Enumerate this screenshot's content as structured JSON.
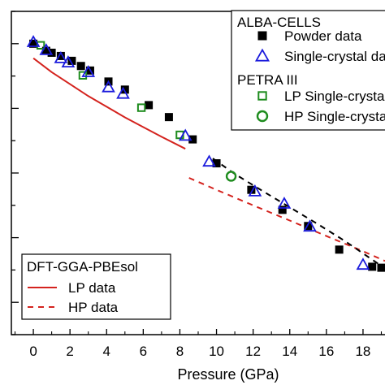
{
  "chart_data": {
    "type": "scatter",
    "title": "",
    "xlabel": "Pressure (GPa)",
    "ylabel": "",
    "xlim": [
      -1.2,
      19.2
    ],
    "ylim": [
      0,
      1
    ],
    "x_ticks": [
      0,
      2,
      4,
      6,
      8,
      10,
      12,
      14,
      16,
      18
    ],
    "grid": false,
    "legend_groups": [
      {
        "header": "ALBA-CELLS",
        "position": "top-right"
      },
      {
        "header": "PETRA III",
        "position": "top-right"
      },
      {
        "header": "DFT-GGA-PBEsol",
        "position": "bottom-left"
      }
    ],
    "series": [
      {
        "name": "Powder data",
        "group": "ALBA-CELLS",
        "marker": "square-filled",
        "color": "#000000",
        "x": [
          0.0,
          0.7,
          1.0,
          1.5,
          2.1,
          2.6,
          3.1,
          4.1,
          5.0,
          6.3,
          7.4,
          8.7,
          10.0,
          11.9,
          13.6,
          15.0,
          16.7,
          18.5,
          19.0
        ],
        "y": [
          0.9,
          0.878,
          0.872,
          0.862,
          0.847,
          0.831,
          0.817,
          0.783,
          0.758,
          0.71,
          0.673,
          0.604,
          0.53,
          0.448,
          0.386,
          0.336,
          0.263,
          0.21,
          0.207
        ]
      },
      {
        "name": "Single-crystal data",
        "group": "ALBA-CELLS",
        "marker": "triangle-open",
        "color": "#1a1adc",
        "x": [
          0.0,
          0.7,
          1.5,
          1.9,
          3.0,
          4.1,
          4.9,
          8.3,
          9.6,
          12.1,
          13.7,
          15.1,
          18.0
        ],
        "y": [
          0.905,
          0.88,
          0.855,
          0.842,
          0.812,
          0.765,
          0.745,
          0.615,
          0.535,
          0.443,
          0.405,
          0.334,
          0.216
        ]
      },
      {
        "name": "LP Single-crystal data",
        "group": "PETRA III",
        "marker": "square-open",
        "color": "#1e8c1e",
        "x": [
          0.4,
          2.7,
          5.9,
          8.0
        ],
        "y": [
          0.895,
          0.802,
          0.702,
          0.618
        ]
      },
      {
        "name": "HP Single-crystal data",
        "group": "PETRA III",
        "marker": "circle-open",
        "color": "#1e8c1e",
        "x": [
          10.8
        ],
        "y": [
          0.49
        ]
      },
      {
        "name": "LP data",
        "group": "DFT-GGA-PBEsol",
        "line": "solid",
        "color": "#d4231e",
        "x": [
          0.0,
          1.0,
          2.0,
          3.0,
          4.0,
          5.0,
          6.0,
          7.0,
          8.3
        ],
        "y": [
          0.855,
          0.812,
          0.775,
          0.738,
          0.705,
          0.672,
          0.642,
          0.612,
          0.575
        ]
      },
      {
        "name": "HP data",
        "group": "DFT-GGA-PBEsol",
        "line": "dashed",
        "color": "#d4231e",
        "x": [
          8.5,
          10.0,
          12.0,
          14.0,
          16.0,
          18.0,
          19.2
        ],
        "y": [
          0.485,
          0.448,
          0.4,
          0.353,
          0.305,
          0.258,
          0.228
        ]
      },
      {
        "name": "",
        "group": "",
        "line": "dashed",
        "color": "#000000",
        "x": [
          9.8,
          11.0,
          12.5,
          14.0,
          15.5,
          17.0,
          19.2
        ],
        "y": [
          0.545,
          0.497,
          0.445,
          0.394,
          0.343,
          0.29,
          0.205
        ]
      }
    ]
  }
}
